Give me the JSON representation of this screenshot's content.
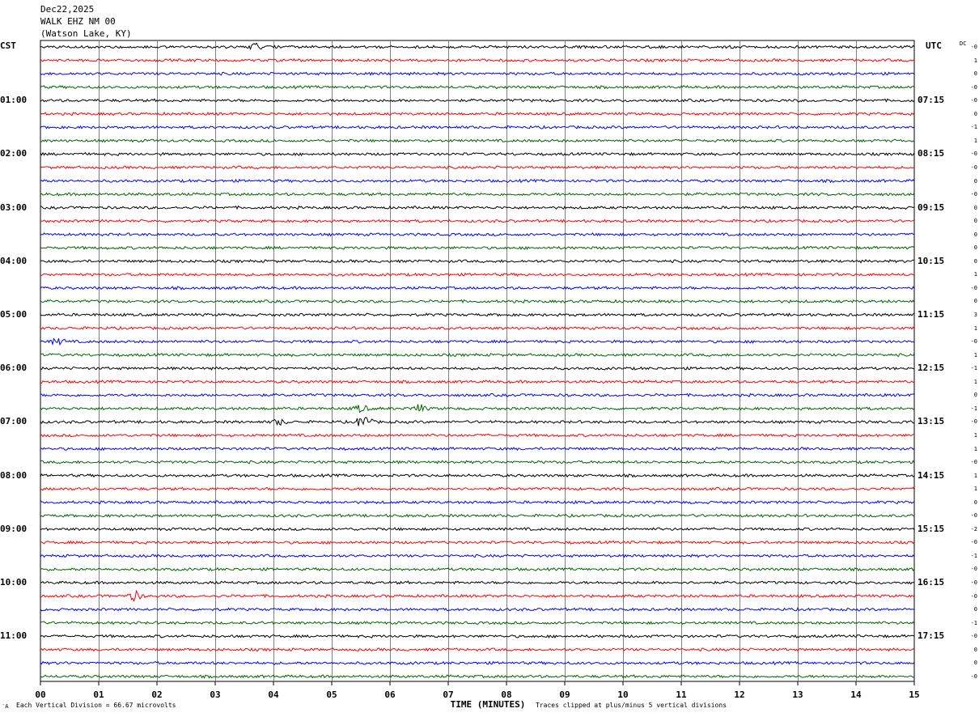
{
  "header": {
    "date": "Dec22,2025",
    "station": "WALK EHZ NM 00",
    "location": "(Watson Lake, KY)"
  },
  "left_zone": "CST",
  "right_zone": "UTC",
  "dc_header": "DC",
  "footer": {
    "scale_note": "Each Vertical Division =   66.67 microvolts",
    "clip_note": "Traces clipped at plus/minus 5 vertical divisions",
    "corner_mark": "′A"
  },
  "colors": {
    "trace_cycle": [
      "#000000",
      "#ff0000",
      "#0000ff",
      "#006400"
    ],
    "grid": "#808080"
  },
  "chart_data": {
    "type": "line",
    "xlabel": "TIME (MINUTES)",
    "xlim": [
      0,
      15
    ],
    "x_ticks": [
      "00",
      "01",
      "02",
      "03",
      "04",
      "05",
      "06",
      "07",
      "08",
      "09",
      "10",
      "11",
      "12",
      "13",
      "14",
      "15"
    ],
    "trace_count": 48,
    "traces_per_hour": 4,
    "left_time_labels": [
      "01:00",
      "02:00",
      "03:00",
      "04:00",
      "05:00",
      "06:00",
      "07:00",
      "08:00",
      "09:00",
      "10:00",
      "11:00"
    ],
    "right_time_labels": [
      "07:15",
      "08:15",
      "09:15",
      "10:15",
      "11:15",
      "12:15",
      "13:15",
      "14:15",
      "15:15",
      "16:15",
      "17:15"
    ],
    "dc_offsets": [
      "-0",
      "1",
      "0",
      "-0",
      "-0",
      "0",
      "-1",
      "1",
      "-0",
      "-0",
      "0",
      "-0",
      "0",
      "0",
      "0",
      "0",
      "0",
      "1",
      "-0",
      "0",
      "3",
      "1",
      "-0",
      "1",
      "-1",
      "1",
      "0",
      "-1",
      "-0",
      "1",
      "1",
      "-0",
      "1",
      "1",
      "0",
      "-0",
      "-2",
      "-0",
      "-1",
      "-0",
      "-0",
      "-0",
      "0",
      "-1",
      "-0",
      "0",
      "0",
      "-0"
    ],
    "events": [
      {
        "trace": 0,
        "minute": 3.7,
        "amp": 1.5
      },
      {
        "trace": 22,
        "minute": 0.3,
        "amp": 1.6
      },
      {
        "trace": 27,
        "minute": 5.5,
        "amp": 2.0
      },
      {
        "trace": 27,
        "minute": 6.5,
        "amp": 2.2
      },
      {
        "trace": 28,
        "minute": 5.55,
        "amp": 4.0
      },
      {
        "trace": 28,
        "minute": 4.1,
        "amp": 1.5
      },
      {
        "trace": 41,
        "minute": 1.62,
        "amp": 2.6
      }
    ]
  }
}
